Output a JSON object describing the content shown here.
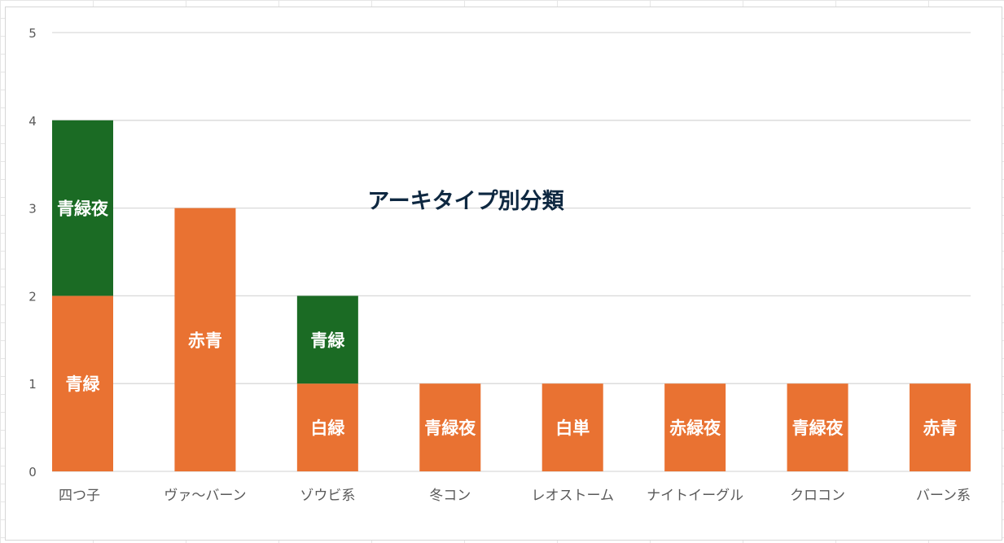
{
  "chart_data": {
    "type": "bar",
    "stacked": true,
    "title": "アーキタイプ別分類",
    "xlabel": "",
    "ylabel": "",
    "ylim": [
      0,
      5
    ],
    "yticks": [
      "0",
      "1",
      "2",
      "3",
      "4",
      "5"
    ],
    "grid": true,
    "categories": [
      "四つ子",
      "ヴァ～バーン",
      "ゾウビ系",
      "冬コン",
      "レオストーム",
      "ナイトイーグル",
      "クロコン",
      "バーン系"
    ],
    "series": [
      {
        "name": "bottom",
        "color": "#E97232",
        "values": [
          2,
          3,
          1,
          1,
          1,
          1,
          1,
          1
        ],
        "labels": [
          "青緑",
          "赤青",
          "白緑",
          "青緑夜",
          "白単",
          "赤緑夜",
          "青緑夜",
          "赤青"
        ]
      },
      {
        "name": "top",
        "color": "#1B6B24",
        "values": [
          2,
          0,
          1,
          0,
          0,
          0,
          0,
          0
        ],
        "labels": [
          "青緑夜",
          "",
          "青緑",
          "",
          "",
          "",
          "",
          ""
        ]
      }
    ]
  }
}
